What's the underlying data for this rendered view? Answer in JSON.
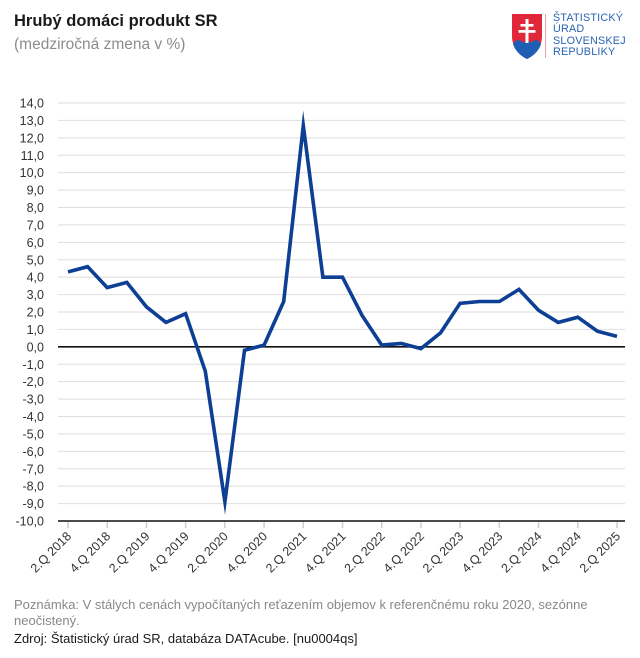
{
  "header": {
    "title": "Hrubý domáci produkt SR",
    "subtitle": "(medziročná zmena v %)"
  },
  "logo": {
    "icon": "slovak-coat-of-arms-icon",
    "lines": [
      "ŠTATISTICKÝ",
      "ÚRAD",
      "SLOVENSKEJ",
      "REPUBLIKY"
    ],
    "text_color": "#2a63b5",
    "shield_red": "#e0283a",
    "shield_blue": "#1e5fb4"
  },
  "footer": {
    "note": "Poznámka: V stálych cenách vypočítaných reťazením objemov k referenčnému roku 2020, sezónne neočistený.",
    "source": "Zdroj: Štatistický úrad SR, databáza DATAcube. [nu0004qs]"
  },
  "chart_data": {
    "type": "line",
    "title": "Hrubý domáci produkt SR",
    "subtitle": "(medziročná zmena v %)",
    "xlabel": "",
    "ylabel": "",
    "ylim": [
      -10,
      14
    ],
    "ytick_step": 1,
    "ytick_labels": [
      "14,0",
      "13,0",
      "12,0",
      "11,0",
      "10,0",
      "9,0",
      "8,0",
      "7,0",
      "6,0",
      "5,0",
      "4,0",
      "3,0",
      "2,0",
      "1,0",
      "0,0",
      "-1,0",
      "-2,0",
      "-3,0",
      "-4,0",
      "-5,0",
      "-6,0",
      "-7,0",
      "-8,0",
      "-9,0",
      "-10,0"
    ],
    "grid": true,
    "legend": "none",
    "line_color": "#0d3f94",
    "x": [
      "2.Q 2018",
      "3.Q 2018",
      "4.Q 2018",
      "1.Q 2019",
      "2.Q 2019",
      "3.Q 2019",
      "4.Q 2019",
      "1.Q 2020",
      "2.Q 2020",
      "3.Q 2020",
      "4.Q 2020",
      "1.Q 2021",
      "2.Q 2021",
      "3.Q 2021",
      "4.Q 2021",
      "1.Q 2022",
      "2.Q 2022",
      "3.Q 2022",
      "4.Q 2022",
      "1.Q 2023",
      "2.Q 2023",
      "3.Q 2023",
      "4.Q 2023",
      "1.Q 2024",
      "2.Q 2024",
      "3.Q 2024",
      "4.Q 2024",
      "1.Q 2025",
      "2.Q 2025"
    ],
    "xtick_labels": [
      "2.Q 2018",
      "4.Q 2018",
      "2.Q 2019",
      "4.Q 2019",
      "2.Q 2020",
      "4.Q 2020",
      "2.Q 2021",
      "4.Q 2021",
      "2.Q 2022",
      "4.Q 2022",
      "2.Q 2023",
      "4.Q 2023",
      "2.Q 2024",
      "4.Q 2024",
      "2.Q 2025"
    ],
    "series": [
      {
        "name": "Hrubý domáci produkt SR",
        "values": [
          4.3,
          4.6,
          3.4,
          3.7,
          2.3,
          1.4,
          1.9,
          -1.4,
          -8.9,
          -0.2,
          0.1,
          2.6,
          12.7,
          4.0,
          4.0,
          1.8,
          0.1,
          0.2,
          -0.1,
          0.8,
          2.5,
          2.6,
          2.6,
          3.3,
          2.1,
          1.4,
          1.7,
          0.9,
          0.6
        ]
      }
    ]
  }
}
